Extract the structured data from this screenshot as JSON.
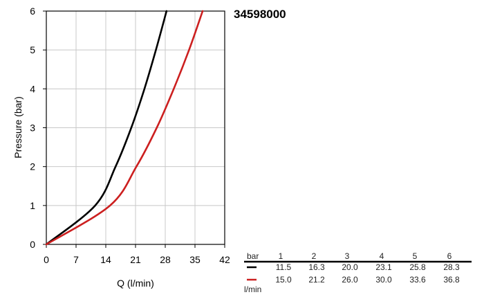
{
  "product_code": "34598000",
  "chart_data": {
    "type": "line",
    "title": "34598000",
    "xlabel": "Q (l/min)",
    "ylabel": "Pressure (bar)",
    "xlim": [
      0,
      42
    ],
    "ylim": [
      0,
      6
    ],
    "x_ticks": [
      "0",
      "7",
      "14",
      "21",
      "28",
      "35",
      "42"
    ],
    "y_ticks": [
      "0",
      "1",
      "2",
      "3",
      "4",
      "5",
      "6"
    ],
    "grid": true,
    "series": [
      {
        "color": "#000000",
        "points": [
          [
            0,
            0
          ],
          [
            11.5,
            1
          ],
          [
            16.3,
            2
          ],
          [
            20.0,
            3
          ],
          [
            23.1,
            4
          ],
          [
            25.8,
            5
          ],
          [
            28.3,
            6
          ]
        ]
      },
      {
        "color": "#cc1f1f",
        "points": [
          [
            0,
            0
          ],
          [
            15.0,
            1
          ],
          [
            21.2,
            2
          ],
          [
            26.0,
            3
          ],
          [
            30.0,
            4
          ],
          [
            33.6,
            5
          ],
          [
            36.8,
            6
          ]
        ]
      }
    ]
  },
  "table": {
    "unit_bar": "bar",
    "unit_flow": "l/min",
    "columns": [
      "1",
      "2",
      "3",
      "4",
      "5",
      "6"
    ],
    "rows": [
      {
        "color": "#000000",
        "values": [
          "11.5",
          "16.3",
          "20.0",
          "23.1",
          "25.8",
          "28.3"
        ]
      },
      {
        "color": "#cc1f1f",
        "values": [
          "15.0",
          "21.2",
          "26.0",
          "30.0",
          "33.6",
          "36.8"
        ]
      }
    ]
  }
}
